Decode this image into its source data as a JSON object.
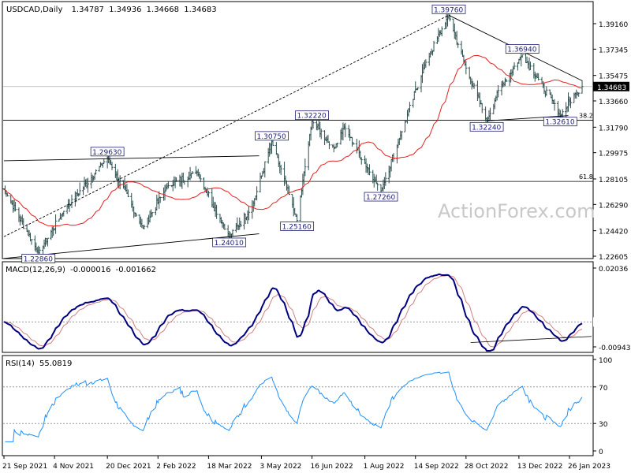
{
  "chart_data": [
    {
      "panel": "price",
      "type": "ohlc",
      "header": {
        "symbol": "USDCAD,Daily",
        "open": "1.34787",
        "high": "1.34936",
        "low": "1.34668",
        "close": "1.34683"
      },
      "current_price_label": "1.34683",
      "watermark": "ActionForex.com",
      "y_ticks": [
        "1.39160",
        "1.37345",
        "1.35475",
        "1.33660",
        "1.31790",
        "1.29975",
        "1.28105",
        "1.26290",
        "1.24420",
        "1.22605"
      ],
      "x_ticks": [
        "21 Sep 2021",
        "4 Nov 2021",
        "20 Dec 2021",
        "2 Feb 2022",
        "18 Mar 2022",
        "3 May 2022",
        "16 Jun 2022",
        "1 Aug 2022",
        "14 Sep 2022",
        "28 Oct 2022",
        "13 Dec 2022",
        "26 Jan 2023"
      ],
      "pivot_labels": [
        {
          "text": "1.39760",
          "date": "2022-10-13",
          "price": 1.3976
        },
        {
          "text": "1.36940",
          "date": "2022-12-16",
          "price": 1.3694
        },
        {
          "text": "1.32220",
          "date": "2022-06-16",
          "price": 1.3222
        },
        {
          "text": "1.32240",
          "date": "2022-11-15",
          "price": 1.3224
        },
        {
          "text": "1.32610",
          "date": "2023-01-18",
          "price": 1.3261
        },
        {
          "text": "1.30750",
          "date": "2022-05-12",
          "price": 1.3075
        },
        {
          "text": "1.29630",
          "date": "2021-12-20",
          "price": 1.2963
        },
        {
          "text": "1.27260",
          "date": "2022-08-15",
          "price": 1.2726
        },
        {
          "text": "1.25160",
          "date": "2022-06-03",
          "price": 1.2516
        },
        {
          "text": "1.24010",
          "date": "2022-04-05",
          "price": 1.2401
        },
        {
          "text": "1.22860",
          "date": "2021-10-21",
          "price": 1.2286
        }
      ],
      "fib_levels": [
        {
          "text": "38.2",
          "price": 1.3229
        },
        {
          "text": "61.8",
          "price": 1.2793
        }
      ],
      "colors": {
        "bars": "#2f4f4f",
        "moving_average": "#e81e1e",
        "labels": "#1e1e78",
        "trendline": "#000000"
      }
    },
    {
      "panel": "macd",
      "type": "line",
      "header": {
        "name": "MACD(12,26,9)",
        "main": "-0.000016",
        "signal": "-0.001662"
      },
      "y_ticks": [
        "0.02036",
        "0.00",
        "-0.009438"
      ],
      "colors": {
        "main": "#000080",
        "signal": "#d08080"
      }
    },
    {
      "panel": "rsi",
      "type": "line",
      "header": {
        "name": "RSI(14)",
        "value": "55.0819"
      },
      "y_ticks": [
        "100",
        "70",
        "30",
        "0"
      ],
      "colors": {
        "line": "#1e90ff"
      }
    }
  ]
}
